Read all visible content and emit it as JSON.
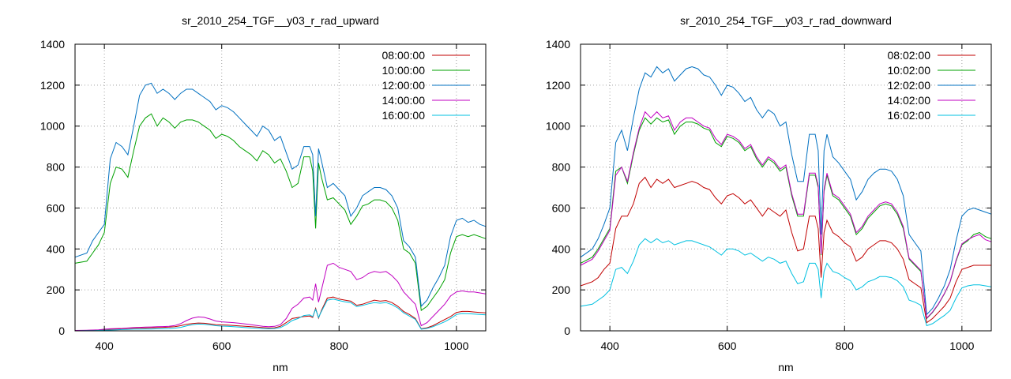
{
  "chart_data": [
    {
      "type": "line",
      "title": "sr_2010_254_TGF__y03_r_rad_upward",
      "xlabel": "nm",
      "ylabel": "",
      "xlim": [
        350,
        1050
      ],
      "ylim": [
        0,
        1400
      ],
      "xticks": [
        400,
        600,
        800,
        1000
      ],
      "yticks": [
        0,
        200,
        400,
        600,
        800,
        1000,
        1200,
        1400
      ],
      "grid": true,
      "legend_position": "top-right",
      "x": [
        350,
        370,
        380,
        390,
        400,
        410,
        420,
        430,
        440,
        450,
        460,
        470,
        480,
        490,
        500,
        510,
        520,
        530,
        540,
        550,
        560,
        570,
        580,
        590,
        600,
        610,
        620,
        630,
        640,
        650,
        660,
        670,
        680,
        690,
        700,
        710,
        720,
        730,
        740,
        750,
        755,
        760,
        765,
        770,
        780,
        790,
        800,
        810,
        820,
        830,
        840,
        850,
        860,
        870,
        880,
        890,
        900,
        910,
        920,
        930,
        940,
        950,
        960,
        970,
        980,
        990,
        1000,
        1010,
        1020,
        1030,
        1040,
        1050
      ],
      "series": [
        {
          "name": "08:00:00",
          "color": "#c00000",
          "values": [
            1,
            2,
            3,
            4,
            6,
            8,
            9,
            10,
            12,
            13,
            14,
            14,
            15,
            16,
            17,
            18,
            20,
            25,
            32,
            36,
            38,
            37,
            34,
            30,
            29,
            28,
            26,
            24,
            22,
            20,
            18,
            16,
            14,
            15,
            22,
            40,
            60,
            65,
            70,
            72,
            65,
            110,
            62,
            100,
            160,
            165,
            155,
            150,
            145,
            125,
            130,
            140,
            150,
            145,
            148,
            138,
            120,
            95,
            80,
            60,
            10,
            15,
            25,
            40,
            55,
            70,
            90,
            95,
            95,
            92,
            90,
            88
          ]
        },
        {
          "name": "10:00:00",
          "color": "#00a000",
          "values": [
            330,
            340,
            380,
            420,
            480,
            720,
            800,
            790,
            750,
            880,
            1000,
            1040,
            1060,
            1000,
            1040,
            1020,
            990,
            1020,
            1030,
            1030,
            1020,
            1000,
            980,
            940,
            960,
            950,
            930,
            900,
            880,
            860,
            830,
            880,
            860,
            820,
            840,
            780,
            700,
            720,
            850,
            850,
            780,
            500,
            820,
            750,
            640,
            650,
            620,
            590,
            520,
            560,
            610,
            620,
            640,
            640,
            630,
            600,
            540,
            400,
            380,
            330,
            100,
            120,
            160,
            200,
            250,
            380,
            460,
            470,
            460,
            470,
            460,
            450
          ]
        },
        {
          "name": "12:00:00",
          "color": "#0070c0",
          "values": [
            360,
            380,
            440,
            480,
            520,
            840,
            920,
            900,
            860,
            1000,
            1150,
            1200,
            1210,
            1160,
            1180,
            1160,
            1130,
            1160,
            1180,
            1180,
            1160,
            1140,
            1120,
            1080,
            1100,
            1090,
            1070,
            1040,
            1010,
            980,
            950,
            1000,
            980,
            930,
            950,
            870,
            790,
            810,
            900,
            900,
            860,
            560,
            890,
            830,
            700,
            720,
            690,
            660,
            560,
            600,
            660,
            680,
            700,
            700,
            690,
            660,
            600,
            440,
            410,
            360,
            120,
            150,
            210,
            260,
            320,
            460,
            540,
            550,
            530,
            540,
            520,
            510
          ]
        },
        {
          "name": "14:00:00",
          "color": "#c000c0",
          "values": [
            2,
            3,
            4,
            5,
            8,
            10,
            11,
            12,
            14,
            16,
            17,
            18,
            19,
            20,
            21,
            22,
            26,
            35,
            50,
            62,
            68,
            66,
            58,
            48,
            44,
            42,
            40,
            37,
            34,
            30,
            26,
            22,
            20,
            22,
            30,
            60,
            110,
            130,
            160,
            165,
            150,
            230,
            140,
            200,
            320,
            330,
            310,
            300,
            290,
            250,
            260,
            280,
            290,
            285,
            290,
            270,
            240,
            190,
            160,
            130,
            25,
            40,
            70,
            100,
            130,
            170,
            190,
            195,
            190,
            190,
            185,
            180
          ]
        },
        {
          "name": "16:00:00",
          "color": "#00c0e0",
          "values": [
            0,
            1,
            1,
            2,
            3,
            4,
            5,
            6,
            7,
            8,
            8,
            9,
            9,
            10,
            10,
            11,
            13,
            17,
            24,
            30,
            33,
            32,
            29,
            25,
            23,
            22,
            20,
            18,
            16,
            14,
            13,
            11,
            10,
            11,
            16,
            30,
            50,
            60,
            75,
            78,
            70,
            105,
            65,
            95,
            150,
            155,
            148,
            142,
            138,
            118,
            124,
            132,
            138,
            135,
            138,
            128,
            112,
            88,
            72,
            56,
            8,
            12,
            20,
            32,
            44,
            60,
            80,
            85,
            84,
            82,
            80,
            78
          ]
        }
      ]
    },
    {
      "type": "line",
      "title": "sr_2010_254_TGF__y03_r_rad_downward",
      "xlabel": "nm",
      "ylabel": "",
      "xlim": [
        350,
        1050
      ],
      "ylim": [
        0,
        1400
      ],
      "xticks": [
        400,
        600,
        800,
        1000
      ],
      "yticks": [
        0,
        200,
        400,
        600,
        800,
        1000,
        1200,
        1400
      ],
      "grid": true,
      "legend_position": "top-right",
      "x": [
        350,
        370,
        380,
        390,
        400,
        410,
        420,
        430,
        440,
        450,
        460,
        470,
        480,
        490,
        500,
        510,
        520,
        530,
        540,
        550,
        560,
        570,
        580,
        590,
        600,
        610,
        620,
        630,
        640,
        650,
        660,
        670,
        680,
        690,
        700,
        710,
        720,
        730,
        740,
        750,
        755,
        760,
        765,
        770,
        780,
        790,
        800,
        810,
        820,
        830,
        840,
        850,
        860,
        870,
        880,
        890,
        900,
        910,
        920,
        930,
        940,
        950,
        960,
        970,
        980,
        990,
        1000,
        1010,
        1020,
        1030,
        1040,
        1050
      ],
      "series": [
        {
          "name": "08:02:00",
          "color": "#c00000",
          "values": [
            220,
            240,
            260,
            300,
            330,
            500,
            560,
            560,
            620,
            720,
            750,
            700,
            740,
            720,
            740,
            700,
            710,
            720,
            730,
            720,
            700,
            690,
            650,
            620,
            660,
            670,
            650,
            620,
            640,
            600,
            560,
            600,
            580,
            560,
            590,
            480,
            390,
            400,
            560,
            560,
            500,
            260,
            480,
            540,
            480,
            460,
            430,
            410,
            340,
            360,
            400,
            420,
            440,
            440,
            430,
            400,
            350,
            250,
            230,
            210,
            40,
            60,
            90,
            120,
            160,
            240,
            300,
            310,
            320,
            320,
            320,
            320
          ]
        },
        {
          "name": "10:02:00",
          "color": "#00a000",
          "values": [
            330,
            360,
            400,
            450,
            500,
            780,
            800,
            720,
            860,
            980,
            1040,
            1010,
            1040,
            1020,
            1030,
            960,
            1000,
            1020,
            1020,
            1010,
            990,
            980,
            920,
            900,
            950,
            940,
            920,
            880,
            900,
            840,
            800,
            840,
            820,
            780,
            800,
            660,
            560,
            560,
            760,
            760,
            700,
            370,
            680,
            760,
            660,
            640,
            600,
            560,
            470,
            500,
            550,
            580,
            610,
            620,
            610,
            570,
            500,
            350,
            320,
            290,
            60,
            90,
            130,
            180,
            240,
            340,
            420,
            440,
            470,
            480,
            460,
            450
          ]
        },
        {
          "name": "12:02:00",
          "color": "#0070c0",
          "values": [
            360,
            400,
            450,
            520,
            600,
            920,
            980,
            880,
            1040,
            1180,
            1260,
            1240,
            1290,
            1260,
            1280,
            1220,
            1250,
            1280,
            1290,
            1280,
            1250,
            1240,
            1200,
            1150,
            1200,
            1190,
            1160,
            1120,
            1140,
            1080,
            1040,
            1080,
            1060,
            1000,
            1020,
            860,
            730,
            730,
            960,
            960,
            880,
            470,
            880,
            960,
            850,
            820,
            780,
            740,
            640,
            680,
            740,
            770,
            790,
            790,
            780,
            740,
            660,
            470,
            430,
            390,
            80,
            110,
            160,
            220,
            300,
            440,
            560,
            590,
            600,
            590,
            580,
            570
          ]
        },
        {
          "name": "14:02:00",
          "color": "#c000c0",
          "values": [
            320,
            350,
            390,
            440,
            490,
            760,
            800,
            730,
            870,
            990,
            1070,
            1040,
            1070,
            1040,
            1050,
            980,
            1020,
            1040,
            1040,
            1020,
            1000,
            990,
            940,
            910,
            960,
            950,
            930,
            890,
            910,
            850,
            810,
            850,
            830,
            790,
            810,
            670,
            570,
            570,
            770,
            770,
            710,
            375,
            690,
            770,
            670,
            650,
            610,
            570,
            480,
            510,
            560,
            590,
            620,
            630,
            620,
            580,
            510,
            355,
            325,
            295,
            62,
            92,
            132,
            182,
            242,
            345,
            425,
            445,
            460,
            470,
            445,
            435
          ]
        },
        {
          "name": "16:02:00",
          "color": "#00c0e0",
          "values": [
            120,
            130,
            150,
            170,
            200,
            300,
            310,
            280,
            340,
            420,
            450,
            430,
            450,
            430,
            440,
            420,
            430,
            440,
            440,
            430,
            420,
            410,
            390,
            370,
            400,
            400,
            390,
            370,
            380,
            360,
            340,
            360,
            350,
            330,
            340,
            280,
            230,
            240,
            330,
            330,
            300,
            160,
            290,
            330,
            290,
            280,
            260,
            245,
            200,
            215,
            240,
            250,
            265,
            265,
            260,
            245,
            215,
            150,
            140,
            125,
            25,
            35,
            55,
            75,
            100,
            160,
            210,
            220,
            225,
            225,
            220,
            215
          ]
        }
      ]
    }
  ]
}
